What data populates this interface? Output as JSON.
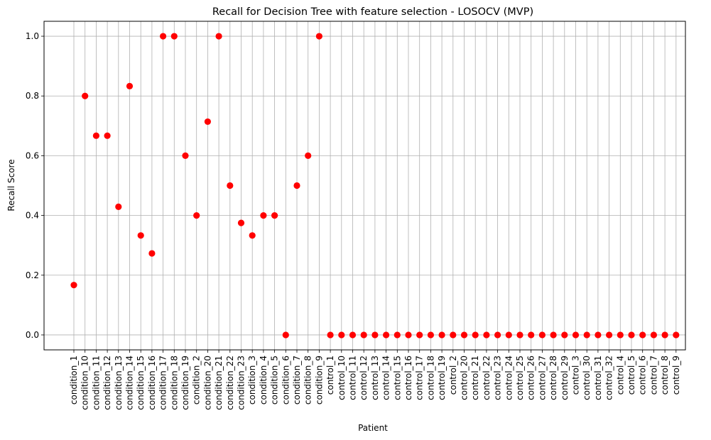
{
  "chart_data": {
    "type": "scatter",
    "title": "Recall for Decision Tree with feature selection - LOSOCV (MVP)",
    "xlabel": "Patient",
    "ylabel": "Recall Score",
    "ylim": [
      -0.05,
      1.05
    ],
    "yticks": [
      "0.0",
      "0.2",
      "0.4",
      "0.6",
      "0.8",
      "1.0"
    ],
    "grid": true,
    "marker_color": "#ff0000",
    "categories": [
      "condition_1",
      "condition_10",
      "condition_11",
      "condition_12",
      "condition_13",
      "condition_14",
      "condition_15",
      "condition_16",
      "condition_17",
      "condition_18",
      "condition_19",
      "condition_2",
      "condition_20",
      "condition_21",
      "condition_22",
      "condition_23",
      "condition_3",
      "condition_4",
      "condition_5",
      "condition_6",
      "condition_7",
      "condition_8",
      "condition_9",
      "control_1",
      "control_10",
      "control_11",
      "control_12",
      "control_13",
      "control_14",
      "control_15",
      "control_16",
      "control_17",
      "control_18",
      "control_19",
      "control_2",
      "control_20",
      "control_21",
      "control_22",
      "control_23",
      "control_24",
      "control_25",
      "control_26",
      "control_27",
      "control_28",
      "control_29",
      "control_3",
      "control_30",
      "control_31",
      "control_32",
      "control_4",
      "control_5",
      "control_6",
      "control_7",
      "control_8",
      "control_9"
    ],
    "values": [
      0.167,
      0.8,
      0.667,
      0.667,
      0.429,
      0.833,
      0.333,
      0.273,
      1.0,
      1.0,
      0.6,
      0.4,
      0.714,
      1.0,
      0.5,
      0.375,
      0.333,
      0.4,
      0.4,
      0.0,
      0.5,
      0.6,
      1.0,
      0,
      0,
      0,
      0,
      0,
      0,
      0,
      0,
      0,
      0,
      0,
      0,
      0,
      0,
      0,
      0,
      0,
      0,
      0,
      0,
      0,
      0,
      0,
      0,
      0,
      0,
      0,
      0,
      0,
      0,
      0,
      0
    ]
  }
}
